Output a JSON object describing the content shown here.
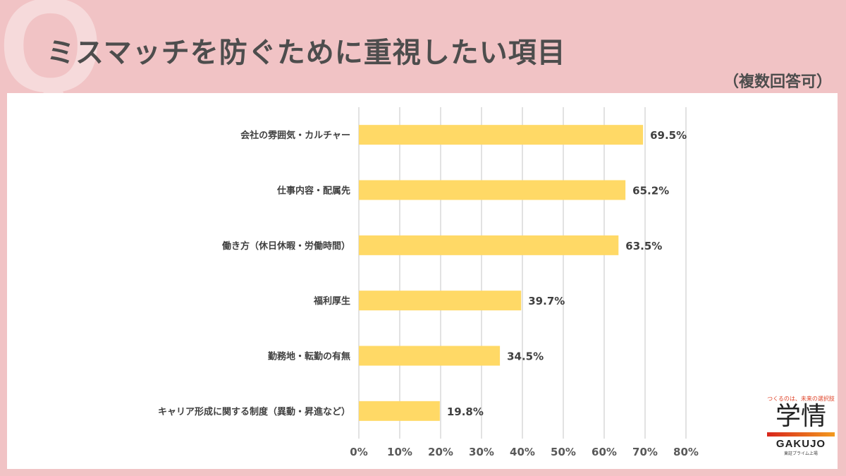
{
  "title": "ミスマッチを防ぐために重視したい項目",
  "subtitle": "（複数回答可）",
  "watermark": "Q",
  "chart_data": {
    "type": "bar",
    "orientation": "horizontal",
    "categories": [
      "会社の雰囲気・カルチャー",
      "仕事内容・配属先",
      "働き方（休日休暇・労働時間）",
      "福利厚生",
      "勤務地・転勤の有無",
      "キャリア形成に関する制度（異動・昇進など）"
    ],
    "values": [
      69.5,
      65.2,
      63.5,
      39.7,
      34.5,
      19.8
    ],
    "data_labels": [
      "69.5%",
      "65.2%",
      "63.5%",
      "39.7%",
      "34.5%",
      "19.8%"
    ],
    "xlim": [
      0,
      80
    ],
    "x_ticks": [
      "0%",
      "10%",
      "20%",
      "30%",
      "40%",
      "50%",
      "60%",
      "70%",
      "80%"
    ],
    "grid": true,
    "bar_color": "#ffd966"
  },
  "logo": {
    "tagline": "つくるのは、未来の選択肢",
    "name_jp": "学情",
    "name_en": "GAKUJO",
    "listing": "東証プライム上場"
  }
}
